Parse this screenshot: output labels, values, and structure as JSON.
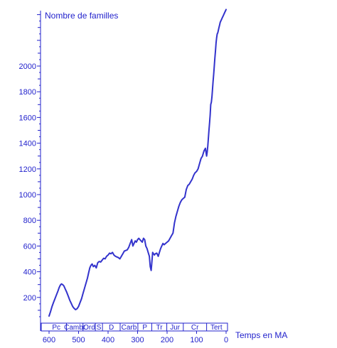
{
  "chart_data": {
    "type": "line",
    "title": "",
    "ylabel": "Nombre de familles",
    "xlabel": "Temps en MA",
    "x_reversed": true,
    "xlim": [
      600,
      0
    ],
    "ylim": [
      0,
      2400
    ],
    "x_ticks": [
      600,
      500,
      400,
      300,
      200,
      100,
      0
    ],
    "y_ticks": [
      200,
      400,
      600,
      800,
      1000,
      1200,
      1400,
      1600,
      1800,
      2000
    ],
    "grid": false,
    "line_color": "#3333cc",
    "text_color": "#2222cc",
    "periods": [
      {
        "label": "Pc",
        "start": 610,
        "end": 541
      },
      {
        "label": "Cambr",
        "start": 541,
        "end": 485
      },
      {
        "label": "Ord",
        "start": 485,
        "end": 443
      },
      {
        "label": "S",
        "start": 443,
        "end": 419
      },
      {
        "label": "D",
        "start": 419,
        "end": 359
      },
      {
        "label": "Carb",
        "start": 359,
        "end": 299
      },
      {
        "label": "P",
        "start": 299,
        "end": 252
      },
      {
        "label": "Tr",
        "start": 252,
        "end": 201
      },
      {
        "label": "Jur",
        "start": 201,
        "end": 145
      },
      {
        "label": "Cr",
        "start": 145,
        "end": 66
      },
      {
        "label": "Tert",
        "start": 66,
        "end": 0
      }
    ],
    "series": [
      {
        "x": [
          600,
          595,
          590,
          585,
          580,
          575,
          570,
          566,
          562,
          558,
          554,
          550,
          545,
          540,
          535,
          530,
          525,
          520,
          515,
          510,
          505,
          500,
          495,
          490,
          485,
          480,
          475,
          470,
          466,
          462,
          458,
          454,
          450,
          445,
          440,
          435,
          430,
          425,
          420,
          415,
          410,
          405,
          400,
          395,
          390,
          385,
          380,
          375,
          370,
          365,
          360,
          355,
          350,
          345,
          340,
          335,
          330,
          325,
          320,
          316,
          312,
          308,
          304,
          300,
          296,
          292,
          288,
          284,
          280,
          276,
          272,
          268,
          264,
          260,
          257,
          254,
          252,
          249,
          246,
          243,
          240,
          235,
          230,
          226,
          222,
          218,
          214,
          210,
          205,
          200,
          195,
          190,
          185,
          180,
          175,
          170,
          165,
          160,
          155,
          150,
          145,
          140,
          135,
          130,
          125,
          120,
          115,
          110,
          105,
          100,
          95,
          90,
          85,
          80,
          75,
          70,
          66,
          64,
          62,
          60,
          58,
          56,
          54,
          52,
          50,
          48,
          46,
          44,
          42,
          40,
          38,
          36,
          34,
          32,
          30,
          28,
          26,
          24,
          22,
          20,
          18,
          16,
          14,
          12,
          10,
          8,
          6,
          4,
          2,
          0
        ],
        "y": [
          55,
          90,
          130,
          160,
          190,
          220,
          250,
          275,
          295,
          305,
          300,
          290,
          265,
          240,
          210,
          180,
          155,
          130,
          115,
          105,
          112,
          130,
          160,
          190,
          230,
          270,
          310,
          350,
          390,
          430,
          450,
          460,
          440,
          450,
          430,
          470,
          480,
          475,
          490,
          505,
          500,
          520,
          530,
          545,
          540,
          550,
          530,
          520,
          515,
          510,
          500,
          520,
          540,
          560,
          565,
          570,
          590,
          620,
          650,
          600,
          620,
          640,
          630,
          650,
          660,
          650,
          640,
          630,
          660,
          650,
          600,
          580,
          550,
          520,
          440,
          410,
          460,
          550,
          540,
          530,
          540,
          545,
          520,
          550,
          580,
          600,
          620,
          610,
          620,
          630,
          640,
          660,
          680,
          700,
          780,
          830,
          870,
          910,
          940,
          960,
          970,
          980,
          1040,
          1070,
          1080,
          1100,
          1120,
          1150,
          1170,
          1180,
          1200,
          1240,
          1280,
          1300,
          1340,
          1360,
          1300,
          1330,
          1380,
          1440,
          1500,
          1560,
          1620,
          1700,
          1720,
          1760,
          1820,
          1880,
          1940,
          2000,
          2060,
          2120,
          2180,
          2220,
          2250,
          2260,
          2280,
          2300,
          2320,
          2340,
          2350,
          2360,
          2370,
          2380,
          2390,
          2400,
          2410,
          2420,
          2430,
          2440
        ]
      }
    ]
  }
}
